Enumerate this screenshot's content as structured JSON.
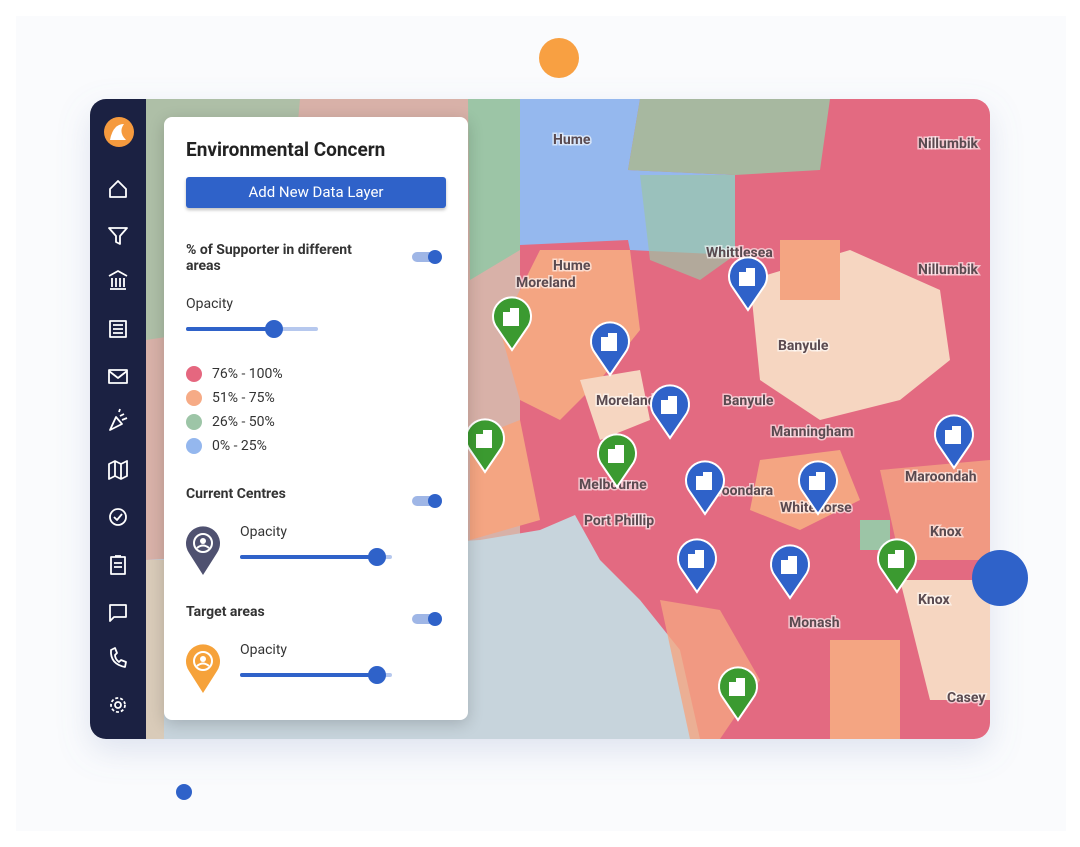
{
  "panel": {
    "title": "Environmental Concern",
    "button": "Add New Data Layer",
    "layers": [
      {
        "title": "% of Supporter in different areas",
        "opacity_label": "Opacity"
      },
      {
        "title": "Current Centres",
        "opacity_label": "Opacity"
      },
      {
        "title": "Target areas",
        "opacity_label": "Opacity"
      }
    ],
    "legend": [
      {
        "label": "76% - 100%",
        "color": "#e5677f"
      },
      {
        "label": "51% - 75%",
        "color": "#f6ab86"
      },
      {
        "label": "26% - 50%",
        "color": "#9dc5a7"
      },
      {
        "label": "0% - 25%",
        "color": "#94b7ee"
      }
    ]
  },
  "map": {
    "labels": [
      "Hume",
      "Whittlesea",
      "Nillumbik",
      "Nillumbik",
      "Banyule",
      "Banyule",
      "Moreland",
      "Moreland",
      "Manningham",
      "Melbourne",
      "Port Phillip",
      "Boroondara",
      "Whitehorse",
      "Maroondah",
      "Knox",
      "Knox",
      "Monash",
      "Casey",
      "Hume"
    ]
  }
}
